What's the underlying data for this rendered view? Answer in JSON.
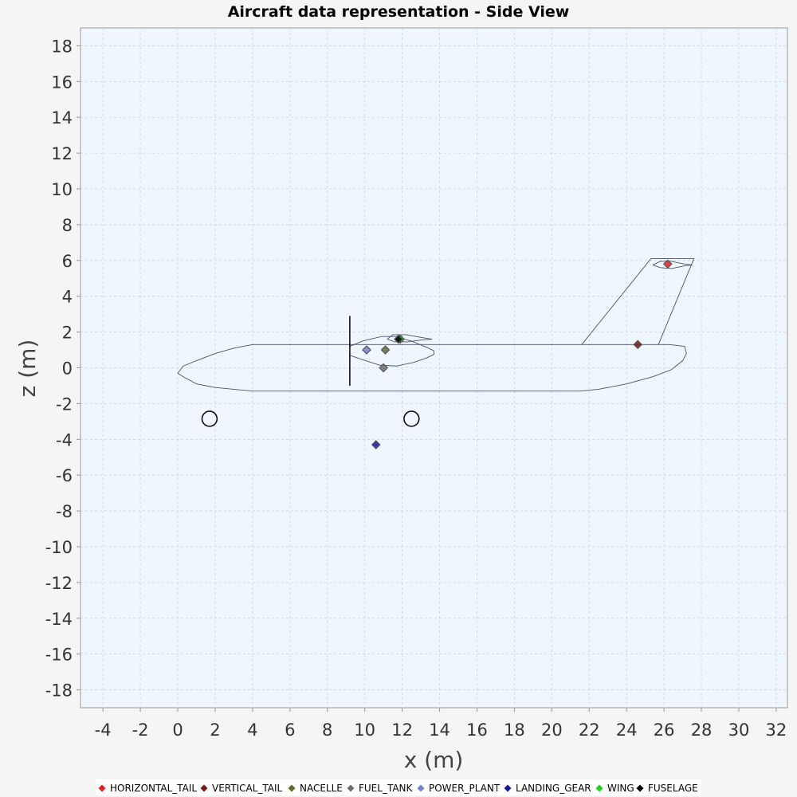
{
  "chart_data": {
    "type": "scatter",
    "title": "Aircraft data representation - Side View",
    "xlabel": "x (m)",
    "ylabel": "z (m)",
    "xlim": [
      -5.2,
      32.6
    ],
    "ylim": [
      -19,
      19
    ],
    "xticks": [
      -4,
      -2,
      0,
      2,
      4,
      6,
      8,
      10,
      12,
      14,
      16,
      18,
      20,
      22,
      24,
      26,
      28,
      30,
      32
    ],
    "yticks": [
      18,
      16,
      14,
      12,
      10,
      8,
      6,
      4,
      2,
      0,
      -2,
      -4,
      -6,
      -8,
      -10,
      -12,
      -14,
      -16,
      -18
    ],
    "grid": true,
    "legend_position": "bottom",
    "legend": [
      {
        "name": "HORIZONTAL_TAIL",
        "color": "#e61e1e"
      },
      {
        "name": "VERTICAL_TAIL",
        "color": "#781818"
      },
      {
        "name": "NACELLE",
        "color": "#5f6b2d"
      },
      {
        "name": "FUEL_TANK",
        "color": "#6e6e6e"
      },
      {
        "name": "POWER_PLANT",
        "color": "#7b7fd0"
      },
      {
        "name": "LANDING_GEAR",
        "color": "#1616a0"
      },
      {
        "name": "WING",
        "color": "#17d617"
      },
      {
        "name": "FUSELAGE",
        "color": "#000000"
      }
    ],
    "points": [
      {
        "series": "HORIZONTAL_TAIL",
        "x": 26.2,
        "z": 5.8
      },
      {
        "series": "VERTICAL_TAIL",
        "x": 24.6,
        "z": 1.3
      },
      {
        "series": "NACELLE",
        "x": 11.1,
        "z": 1.0
      },
      {
        "series": "FUEL_TANK",
        "x": 11.0,
        "z": 0.0
      },
      {
        "series": "POWER_PLANT",
        "x": 10.1,
        "z": 1.0
      },
      {
        "series": "LANDING_GEAR",
        "x": 10.6,
        "z": -4.3
      },
      {
        "series": "WING",
        "x": 11.9,
        "z": 1.6
      },
      {
        "series": "FUSELAGE",
        "x": 11.8,
        "z": 1.6
      }
    ],
    "outlines": {
      "fuselage": [
        [
          0,
          -0.3
        ],
        [
          0.3,
          -0.5
        ],
        [
          1,
          -0.9
        ],
        [
          2,
          -1.1
        ],
        [
          3,
          -1.2
        ],
        [
          4,
          -1.3
        ],
        [
          21.5,
          -1.3
        ],
        [
          22.5,
          -1.2
        ],
        [
          24,
          -0.9
        ],
        [
          25.4,
          -0.5
        ],
        [
          26.4,
          -0.1
        ],
        [
          27,
          0.4
        ],
        [
          27.2,
          0.8
        ],
        [
          27.1,
          1.2
        ],
        [
          26.3,
          1.3
        ],
        [
          4,
          1.3
        ],
        [
          3,
          1.1
        ],
        [
          2,
          0.8
        ],
        [
          1,
          0.4
        ],
        [
          0.3,
          0.1
        ],
        [
          0,
          -0.3
        ]
      ],
      "vertical_tail": [
        [
          21.6,
          1.3
        ],
        [
          25.3,
          6.1
        ],
        [
          27.6,
          6.1
        ],
        [
          25.7,
          1.3
        ]
      ],
      "horizontal_tail_upper": [
        [
          25.4,
          5.75
        ],
        [
          25.8,
          5.95
        ],
        [
          26.4,
          5.95
        ],
        [
          27.1,
          5.8
        ],
        [
          27.5,
          5.75
        ]
      ],
      "horizontal_tail_lower": [
        [
          25.4,
          5.75
        ],
        [
          25.8,
          5.6
        ],
        [
          26.4,
          5.55
        ],
        [
          27.1,
          5.7
        ],
        [
          27.5,
          5.75
        ]
      ],
      "wing_upper": [
        [
          11.2,
          1.6
        ],
        [
          11.5,
          1.85
        ],
        [
          12.2,
          1.85
        ],
        [
          13.0,
          1.7
        ],
        [
          13.6,
          1.6
        ]
      ],
      "wing_lower": [
        [
          11.2,
          1.6
        ],
        [
          11.6,
          1.45
        ],
        [
          12.3,
          1.45
        ],
        [
          13.0,
          1.55
        ],
        [
          13.6,
          1.6
        ]
      ],
      "nacelle_upper": [
        [
          9.2,
          1.2
        ],
        [
          9.9,
          1.5
        ],
        [
          10.9,
          1.75
        ],
        [
          11.7,
          1.75
        ],
        [
          12.6,
          1.45
        ],
        [
          13.3,
          1.15
        ],
        [
          13.7,
          0.95
        ]
      ],
      "nacelle_lower": [
        [
          9.2,
          0.7
        ],
        [
          9.9,
          0.45
        ],
        [
          10.8,
          0.15
        ],
        [
          11.7,
          0.1
        ],
        [
          12.6,
          0.3
        ],
        [
          13.3,
          0.55
        ],
        [
          13.7,
          0.75
        ],
        [
          13.7,
          0.95
        ]
      ],
      "propeller": [
        [
          9.2,
          2.9
        ],
        [
          9.2,
          -1.0
        ]
      ],
      "landing_gear_wheels": [
        {
          "x": 1.7,
          "z": -2.85,
          "r": 0.42
        },
        {
          "x": 12.5,
          "z": -2.85,
          "r": 0.42
        }
      ]
    }
  }
}
